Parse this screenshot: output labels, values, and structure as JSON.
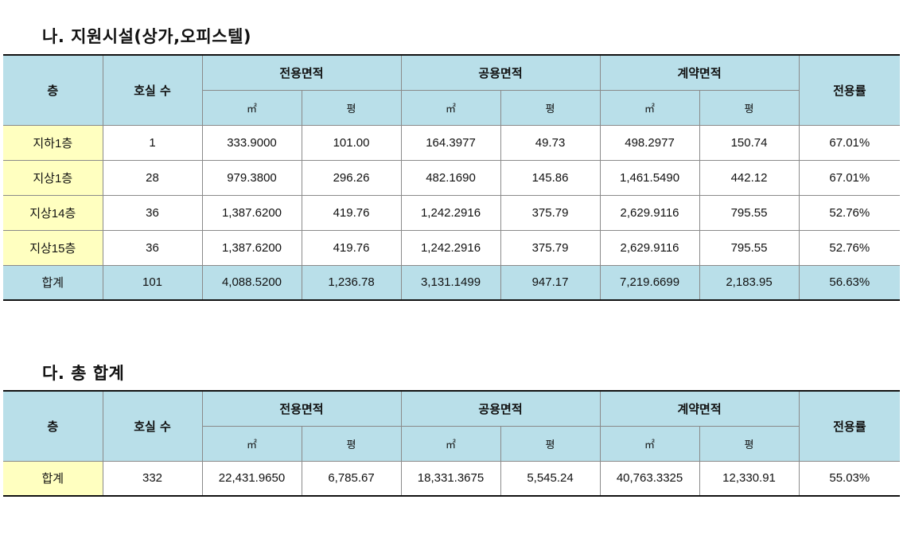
{
  "section1": {
    "title": "나. 지원시설(상가,오피스텔)",
    "header": {
      "floor": "층",
      "rooms": "호실 수",
      "exclusive": "전용면적",
      "common": "공용면적",
      "contract": "계약면적",
      "ratio": "전용률",
      "unit_m2": "㎡",
      "unit_py": "평"
    },
    "rows": [
      {
        "floor": "지하1층",
        "rooms": "1",
        "ex_m2": "333.9000",
        "ex_py": "101.00",
        "co_m2": "164.3977",
        "co_py": "49.73",
        "ct_m2": "498.2977",
        "ct_py": "150.74",
        "ratio": "67.01%"
      },
      {
        "floor": "지상1층",
        "rooms": "28",
        "ex_m2": "979.3800",
        "ex_py": "296.26",
        "co_m2": "482.1690",
        "co_py": "145.86",
        "ct_m2": "1,461.5490",
        "ct_py": "442.12",
        "ratio": "67.01%"
      },
      {
        "floor": "지상14층",
        "rooms": "36",
        "ex_m2": "1,387.6200",
        "ex_py": "419.76",
        "co_m2": "1,242.2916",
        "co_py": "375.79",
        "ct_m2": "2,629.9116",
        "ct_py": "795.55",
        "ratio": "52.76%"
      },
      {
        "floor": "지상15층",
        "rooms": "36",
        "ex_m2": "1,387.6200",
        "ex_py": "419.76",
        "co_m2": "1,242.2916",
        "co_py": "375.79",
        "ct_m2": "2,629.9116",
        "ct_py": "795.55",
        "ratio": "52.76%"
      }
    ],
    "total": {
      "floor": "합계",
      "rooms": "101",
      "ex_m2": "4,088.5200",
      "ex_py": "1,236.78",
      "co_m2": "3,131.1499",
      "co_py": "947.17",
      "ct_m2": "7,219.6699",
      "ct_py": "2,183.95",
      "ratio": "56.63%"
    }
  },
  "section2": {
    "title": "다. 총 합계",
    "header": {
      "floor": "층",
      "rooms": "호실 수",
      "exclusive": "전용면적",
      "common": "공용면적",
      "contract": "계약면적",
      "ratio": "전용률",
      "unit_m2": "㎡",
      "unit_py": "평"
    },
    "total": {
      "floor": "합계",
      "rooms": "332",
      "ex_m2": "22,431.9650",
      "ex_py": "6,785.67",
      "co_m2": "18,331.3675",
      "co_py": "5,545.24",
      "ct_m2": "40,763.3325",
      "ct_py": "12,330.91",
      "ratio": "55.03%"
    }
  }
}
